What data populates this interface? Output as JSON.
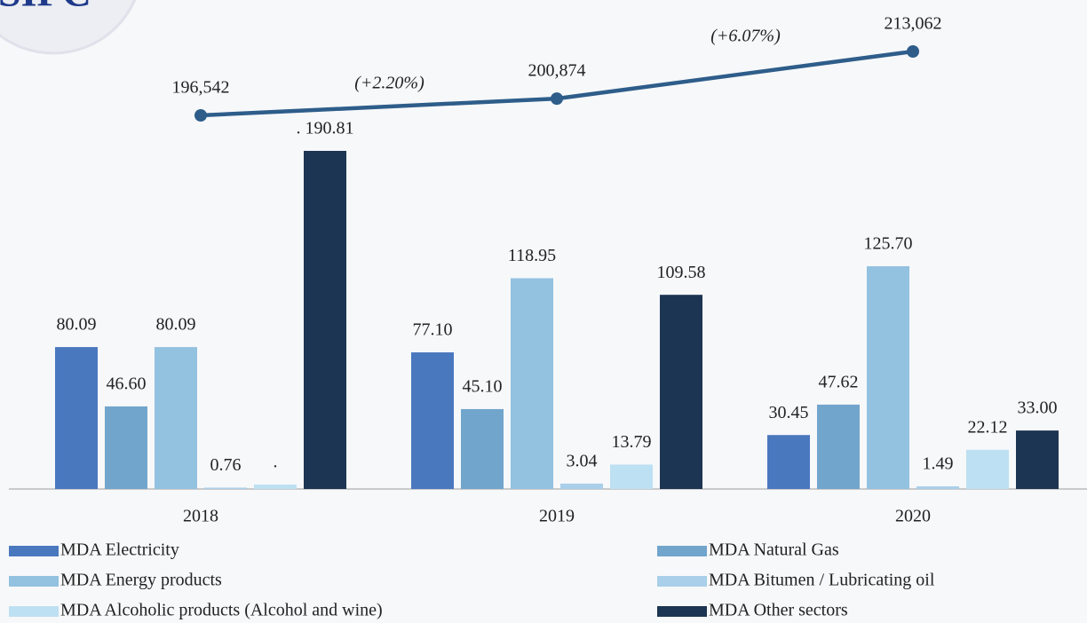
{
  "chart_data": {
    "type": "bar",
    "logo": "SIFC",
    "categories": [
      "2018",
      "2019",
      "2020"
    ],
    "series": [
      {
        "name": "MDA Electricity",
        "color": "#4a78bf",
        "values": [
          80.09,
          77.1,
          30.45
        ],
        "value_labels": [
          "80.09",
          "77.10",
          "30.45"
        ]
      },
      {
        "name": "MDA Natural Gas",
        "color": "#72a5cc",
        "values": [
          46.6,
          45.1,
          47.62
        ],
        "value_labels": [
          "46.60",
          "45.10",
          "47.62"
        ]
      },
      {
        "name": "MDA Energy products",
        "color": "#93c1e0",
        "values": [
          80.09,
          118.95,
          125.7
        ],
        "value_labels": [
          "80.09",
          "118.95",
          "125.70"
        ]
      },
      {
        "name": "MDA Bitumen / Lubricating oil",
        "color": "#a9cfea",
        "values": [
          0.76,
          3.04,
          1.49
        ],
        "value_labels": [
          "0.76",
          "3.04",
          "1.49"
        ]
      },
      {
        "name": "MDA Alcoholic products (Alcohol and wine)",
        "color": "#bde0f2",
        "values": [
          2.5,
          13.79,
          22.12
        ],
        "value_labels": [
          ".",
          "13.79",
          "22.12"
        ]
      },
      {
        "name": "MDA Other sectors",
        "color": "#1c3552",
        "values": [
          190.81,
          109.58,
          33.0
        ],
        "value_labels": [
          ". 190.81",
          "109.58",
          "33.00"
        ]
      }
    ],
    "line": {
      "type": "line",
      "color": "#2e5d8a",
      "values": [
        196542,
        200874,
        213062
      ],
      "value_labels": [
        "196,542",
        "200,874",
        "213,062"
      ],
      "annotations": [
        "(+2.20%)",
        "(+6.07%)"
      ]
    }
  }
}
